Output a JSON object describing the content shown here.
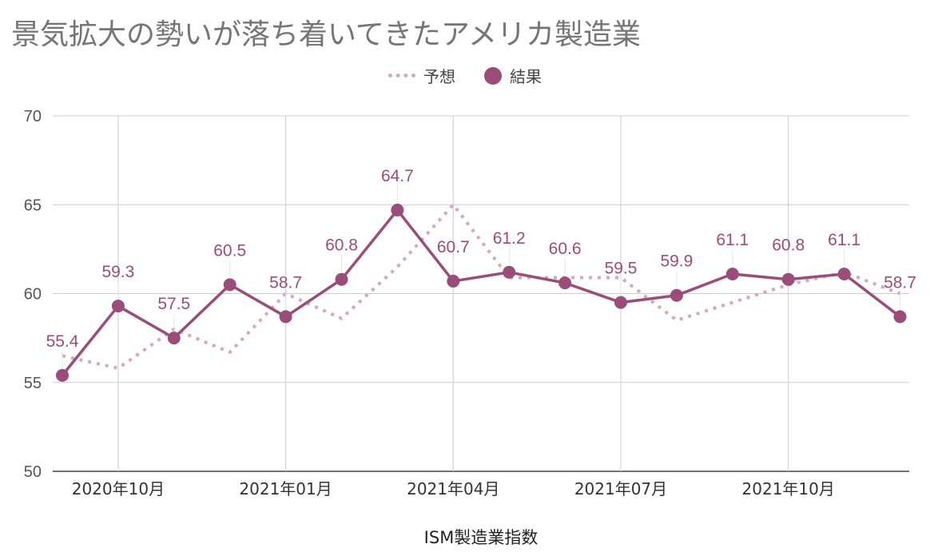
{
  "chart_data": {
    "type": "line",
    "title": "景気拡大の勢いが落ち着いてきたアメリカ製造業",
    "xlabel": "ISM製造業指数",
    "ylabel": "",
    "ylim": [
      50,
      70
    ],
    "yticks": [
      "50",
      "55",
      "60",
      "65",
      "70"
    ],
    "x": [
      "2020-09",
      "2020-10",
      "2020-11",
      "2020-12",
      "2021-01",
      "2021-02",
      "2021-03",
      "2021-04",
      "2021-05",
      "2021-06",
      "2021-07",
      "2021-08",
      "2021-09",
      "2021-10",
      "2021-11",
      "2021-12"
    ],
    "xtick_labels": [
      "2020年10月",
      "2021年01月",
      "2021年04月",
      "2021年07月",
      "2021年10月"
    ],
    "legend_position": "top-center",
    "grid": true,
    "series": [
      {
        "name": "予想",
        "style": "dotted",
        "color": "#d2a9bd",
        "values": [
          56.5,
          55.8,
          58.0,
          56.7,
          60.0,
          58.6,
          61.5,
          65.0,
          60.9,
          60.9,
          60.9,
          58.5,
          59.5,
          60.5,
          61.2,
          60.0
        ]
      },
      {
        "name": "結果",
        "style": "solid-markers",
        "color": "#9a4d78",
        "values": [
          55.4,
          59.3,
          57.5,
          60.5,
          58.7,
          60.8,
          64.7,
          60.7,
          61.2,
          60.6,
          59.5,
          59.9,
          61.1,
          60.8,
          61.1,
          58.7
        ],
        "labels": [
          "55.4",
          "59.3",
          "57.5",
          "60.5",
          "58.7",
          "60.8",
          "64.7",
          "60.7",
          "61.2",
          "60.6",
          "59.5",
          "59.9",
          "61.1",
          "60.8",
          "61.1",
          "58.7"
        ]
      }
    ]
  }
}
